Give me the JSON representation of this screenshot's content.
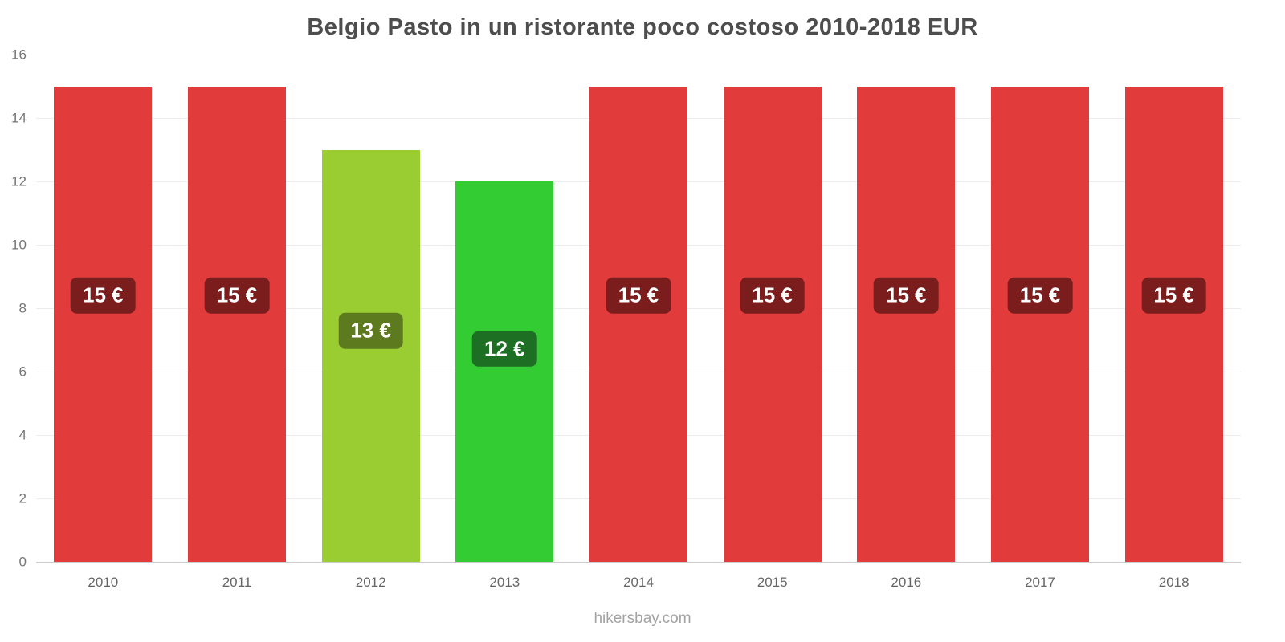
{
  "footer": {
    "text": "hikersbay.com"
  },
  "chart_data": {
    "type": "bar",
    "title": "Belgio Pasto in un ristorante poco costoso 2010-2018 EUR",
    "categories": [
      "2010",
      "2011",
      "2012",
      "2013",
      "2014",
      "2015",
      "2016",
      "2017",
      "2018"
    ],
    "values": [
      15,
      15,
      13,
      12,
      15,
      15,
      15,
      15,
      15
    ],
    "value_labels": [
      "15 €",
      "15 €",
      "13 €",
      "12 €",
      "15 €",
      "15 €",
      "15 €",
      "15 €",
      "15 €"
    ],
    "bar_colors": [
      "#e23b3b",
      "#e23b3b",
      "#9acd32",
      "#33cc33",
      "#e23b3b",
      "#e23b3b",
      "#e23b3b",
      "#e23b3b",
      "#e23b3b"
    ],
    "label_colors": [
      "#7b1d1d",
      "#7b1d1d",
      "#5d7a1f",
      "#1d6f24",
      "#7b1d1d",
      "#7b1d1d",
      "#7b1d1d",
      "#7b1d1d",
      "#7b1d1d"
    ],
    "xlabel": "",
    "ylabel": "",
    "ylim": [
      0,
      16
    ],
    "ytick_step": 2,
    "grid": true,
    "legend": false
  }
}
